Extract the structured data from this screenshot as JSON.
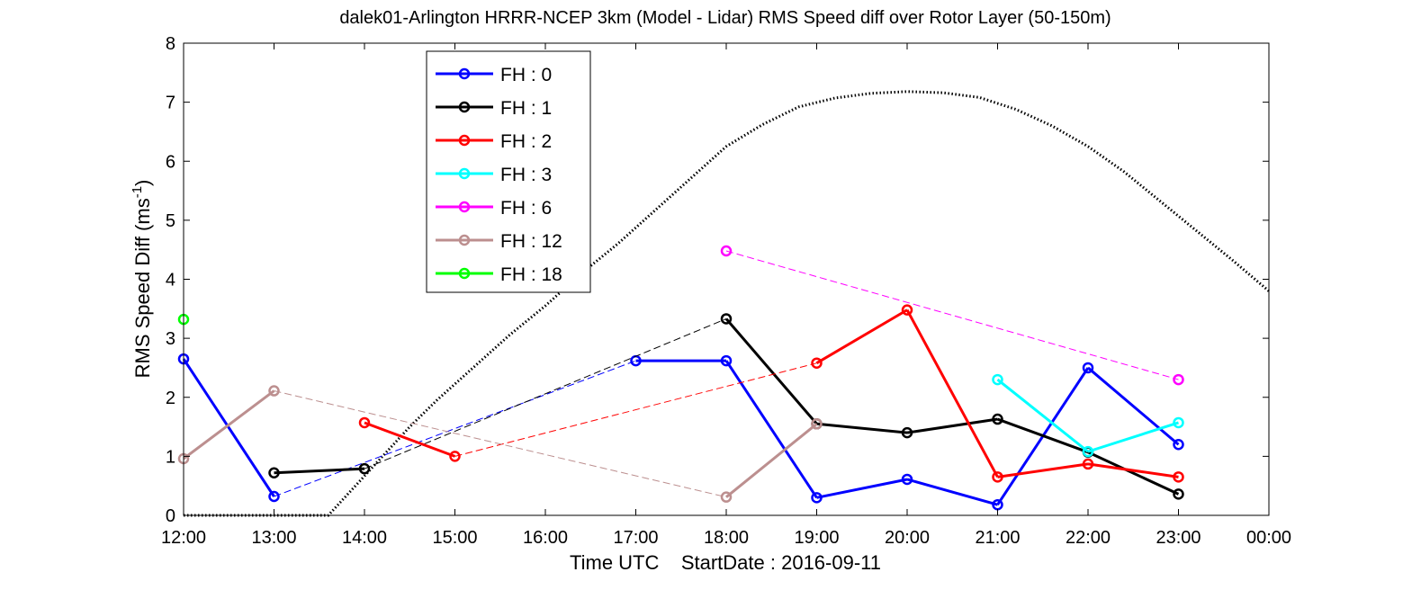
{
  "chart_data": {
    "type": "line",
    "title": "dalek01-Arlington HRRR-NCEP 3km (Model - Lidar) RMS Speed diff over Rotor Layer (50-150m)",
    "xlabel": "Time UTC    StartDate : 2016-09-11",
    "ylabel_main": "RMS Speed Diff (ms",
    "ylabel_sup": "-1",
    "ylabel_close": ")",
    "xlim": [
      12,
      24
    ],
    "ylim": [
      0,
      8
    ],
    "x_ticks": [
      12,
      13,
      14,
      15,
      16,
      17,
      18,
      19,
      20,
      21,
      22,
      23,
      24
    ],
    "x_tick_labels": [
      "12:00",
      "13:00",
      "14:00",
      "15:00",
      "16:00",
      "17:00",
      "18:00",
      "19:00",
      "20:00",
      "21:00",
      "22:00",
      "23:00",
      "00:00"
    ],
    "y_ticks": [
      0,
      1,
      2,
      3,
      4,
      5,
      6,
      7,
      8
    ],
    "y_tick_labels": [
      "0",
      "1",
      "2",
      "3",
      "4",
      "5",
      "6",
      "7",
      "8"
    ],
    "legend_position": "top-left",
    "grid": false,
    "series": [
      {
        "name": "FH : 0",
        "color": "#0000ff",
        "x": [
          12,
          13,
          14,
          15,
          16,
          17,
          18,
          19,
          20,
          21,
          22,
          23
        ],
        "y": [
          2.65,
          0.32,
          null,
          null,
          null,
          2.62,
          2.62,
          0.3,
          0.61,
          0.18,
          2.5,
          1.2
        ]
      },
      {
        "name": "FH : 1",
        "color": "#000000",
        "x": [
          12,
          13,
          14,
          15,
          16,
          17,
          18,
          19,
          20,
          21,
          22,
          23
        ],
        "y": [
          null,
          0.72,
          0.79,
          null,
          null,
          null,
          3.33,
          1.55,
          1.4,
          1.63,
          1.07,
          0.36
        ]
      },
      {
        "name": "FH : 2",
        "color": "#ff0000",
        "x": [
          12,
          13,
          14,
          15,
          16,
          17,
          18,
          19,
          20,
          21,
          22,
          23
        ],
        "y": [
          null,
          null,
          1.57,
          1.0,
          null,
          null,
          null,
          2.58,
          3.48,
          0.65,
          0.87,
          0.65
        ]
      },
      {
        "name": "FH : 3",
        "color": "#00ffff",
        "x": [
          12,
          13,
          14,
          15,
          16,
          17,
          18,
          19,
          20,
          21,
          22,
          23
        ],
        "y": [
          null,
          null,
          null,
          null,
          null,
          null,
          null,
          null,
          null,
          2.3,
          1.08,
          1.57
        ]
      },
      {
        "name": "FH : 6",
        "color": "#ff00ff",
        "x": [
          12,
          13,
          14,
          15,
          16,
          17,
          18,
          19,
          20,
          21,
          22,
          23
        ],
        "y": [
          null,
          null,
          null,
          null,
          null,
          null,
          4.48,
          null,
          null,
          null,
          null,
          2.3
        ]
      },
      {
        "name": "FH : 12",
        "color": "#bc8f8f",
        "x": [
          12,
          13,
          14,
          15,
          16,
          17,
          18,
          19,
          20,
          21,
          22,
          23
        ],
        "y": [
          0.96,
          2.11,
          null,
          null,
          null,
          null,
          0.31,
          1.55,
          null,
          null,
          null,
          null
        ]
      },
      {
        "name": "FH : 18",
        "color": "#00ff00",
        "x": [
          12,
          13,
          14,
          15,
          16,
          17,
          18,
          19,
          20,
          21,
          22,
          23
        ],
        "y": [
          3.32,
          null,
          null,
          null,
          null,
          null,
          null,
          null,
          null,
          null,
          null,
          null
        ]
      }
    ],
    "reference_curve": {
      "style": "dotted",
      "color": "#000000",
      "x": [
        12,
        13.6,
        13.9,
        14.2,
        14.5,
        14.8,
        15.2,
        15.6,
        16.0,
        16.4,
        16.8,
        17.2,
        17.6,
        18.0,
        18.4,
        18.8,
        19.2,
        19.6,
        20.0,
        20.4,
        20.8,
        21.2,
        21.6,
        22.0,
        22.4,
        22.8,
        23.2,
        23.6,
        24.0
      ],
      "y": [
        0,
        0,
        0.5,
        1.0,
        1.5,
        1.95,
        2.5,
        3.05,
        3.55,
        4.1,
        4.6,
        5.15,
        5.7,
        6.25,
        6.62,
        6.92,
        7.07,
        7.15,
        7.18,
        7.16,
        7.08,
        6.88,
        6.6,
        6.25,
        5.82,
        5.32,
        4.82,
        4.32,
        3.8
      ]
    }
  }
}
